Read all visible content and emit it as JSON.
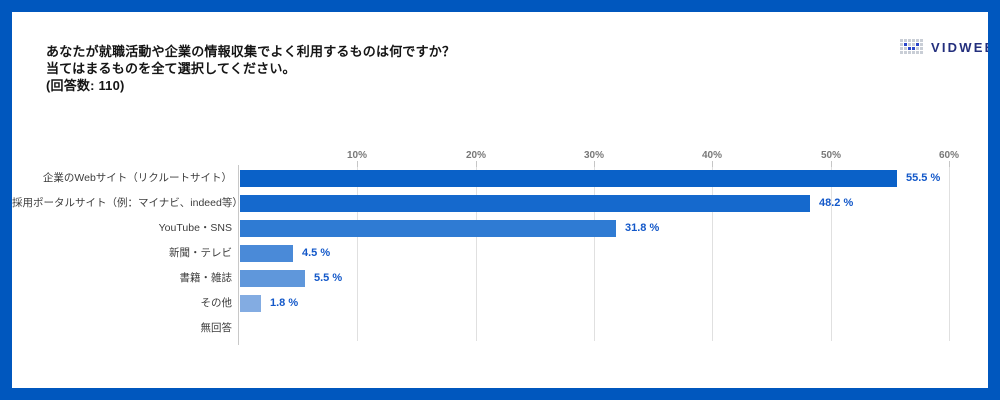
{
  "frame": {
    "border_color": "#0057BE",
    "background": "#FFFFFF"
  },
  "header": {
    "title_lines": [
      "あなたが就職活動や企業の情報収集でよく利用するものは何ですか？",
      "当てはまるものを全て選択してください。",
      "(回答数: 110)"
    ],
    "logo": {
      "text": "VIDWEB",
      "icon": "vidweb-dots-icon",
      "text_color": "#232F7D",
      "icon_blue": "#2C47C9",
      "icon_gray": "#C9CED6"
    }
  },
  "chart_data": {
    "type": "bar",
    "orientation": "horizontal",
    "title": "あなたが就職活動や企業の情報収集でよく利用するものは何ですか？当てはまるものを全て選択してください。",
    "respondents": 110,
    "categories": [
      "企業のWebサイト（リクルートサイト）",
      "採用ポータルサイト（例：マイナビ、indeed等）",
      "YouTube・SNS",
      "新聞・テレビ",
      "書籍・雑誌",
      "その他",
      "無回答"
    ],
    "values": [
      55.5,
      48.2,
      31.8,
      4.5,
      5.5,
      1.8,
      0
    ],
    "value_labels": [
      "55.5 %",
      "48.2 %",
      "31.8 %",
      "4.5 %",
      "5.5 %",
      "1.8 %",
      ""
    ],
    "bar_colors": [
      "#0A61C8",
      "#1569CD",
      "#2F7BD3",
      "#4A8AD8",
      "#5F97DB",
      "#83ACE2",
      null
    ],
    "x_ticks": [
      {
        "value": 10,
        "label": "10%"
      },
      {
        "value": 20,
        "label": "20%"
      },
      {
        "value": 30,
        "label": "30%"
      },
      {
        "value": 40,
        "label": "40%"
      },
      {
        "value": 50,
        "label": "50%"
      },
      {
        "value": 60,
        "label": "60%"
      }
    ],
    "xlim": [
      0,
      60
    ],
    "grid": true,
    "legend": false,
    "value_label_color": "#1358C9",
    "gridline_color": "#E0E0E0",
    "axis_color": "#C8C8C8",
    "tick_label_color": "#787878",
    "category_label_color": "#3C3C3C"
  }
}
